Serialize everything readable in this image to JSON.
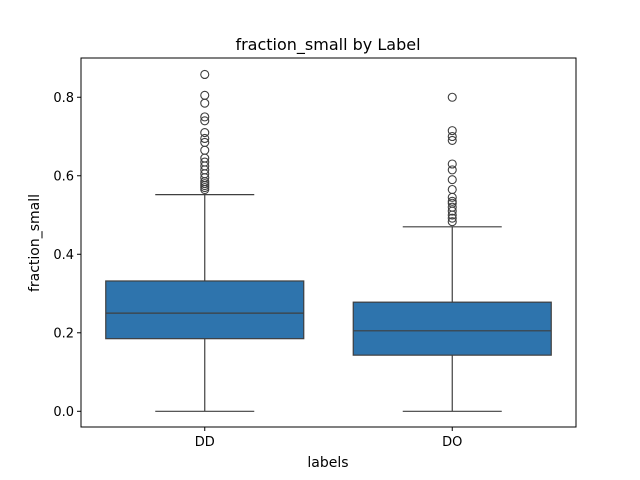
{
  "chart_data": {
    "type": "boxplot",
    "title": "fraction_small by Label",
    "xlabel": "labels",
    "ylabel": "fraction_small",
    "ylim": [
      -0.04,
      0.9
    ],
    "yticks": [
      0.0,
      0.2,
      0.4,
      0.6,
      0.8
    ],
    "ytick_labels": [
      "0.0",
      "0.2",
      "0.4",
      "0.6",
      "0.8"
    ],
    "box_color": "#2e74ad",
    "edge_color": "#3f3f3f",
    "categories": [
      "DD",
      "DO"
    ],
    "series": [
      {
        "name": "DD",
        "whisker_low": 0.0,
        "q1": 0.185,
        "median": 0.25,
        "q3": 0.332,
        "whisker_high": 0.552,
        "outliers": [
          0.565,
          0.57,
          0.575,
          0.58,
          0.585,
          0.595,
          0.605,
          0.615,
          0.625,
          0.635,
          0.645,
          0.665,
          0.685,
          0.695,
          0.71,
          0.74,
          0.75,
          0.785,
          0.805,
          0.858
        ]
      },
      {
        "name": "DO",
        "whisker_low": 0.0,
        "q1": 0.143,
        "median": 0.205,
        "q3": 0.278,
        "whisker_high": 0.47,
        "outliers": [
          0.483,
          0.492,
          0.5,
          0.51,
          0.52,
          0.53,
          0.535,
          0.545,
          0.565,
          0.59,
          0.615,
          0.63,
          0.69,
          0.7,
          0.715,
          0.8
        ]
      }
    ]
  }
}
